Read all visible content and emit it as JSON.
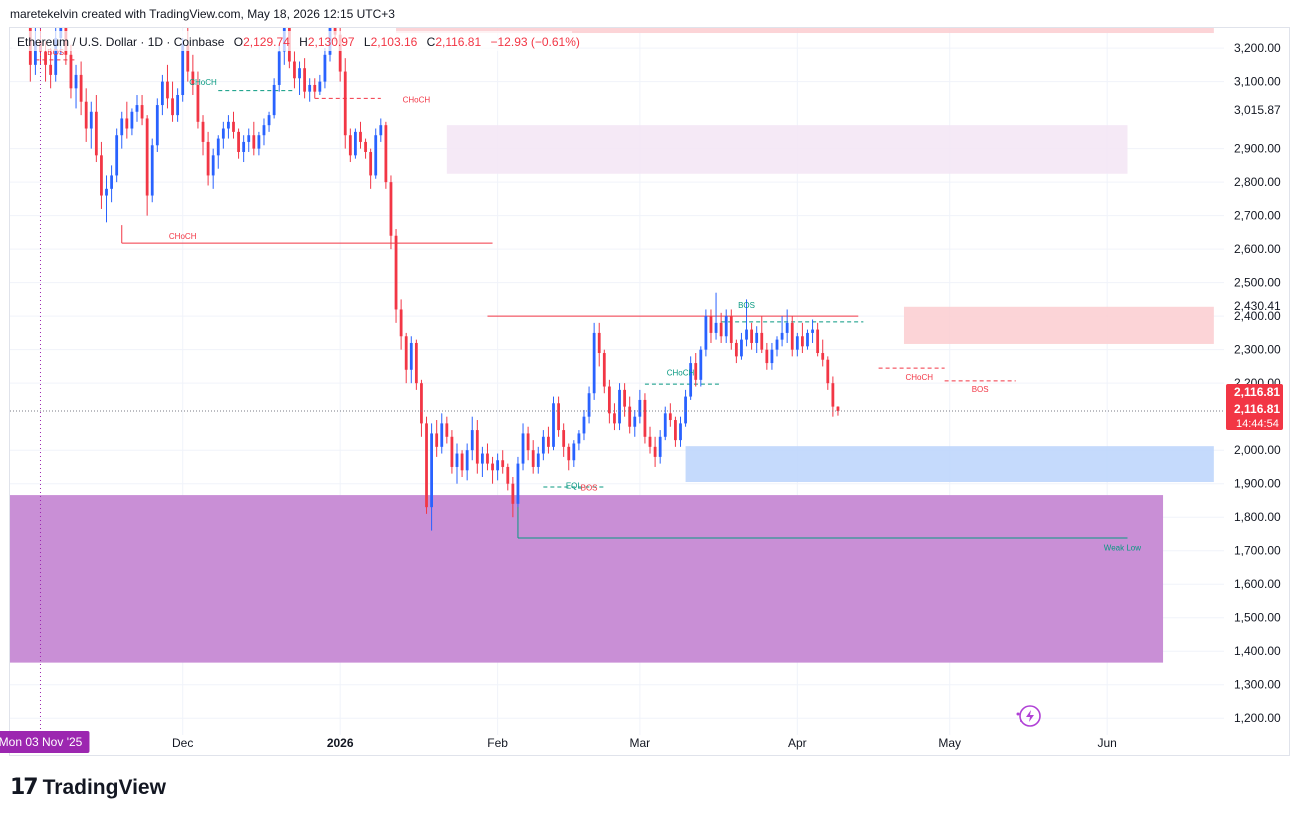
{
  "header": {
    "author_line": "maretekelvin created with TradingView.com, May 18, 2026 12:15 UTC+3"
  },
  "legend": {
    "symbol": "Ethereum / U.S. Dollar · 1D · Coinbase",
    "o_label": "O",
    "o_value": "2,129.74",
    "h_label": "H",
    "h_value": "2,130.97",
    "l_label": "L",
    "l_value": "2,103.16",
    "c_label": "C",
    "c_value": "2,116.81",
    "change": "−12.93 (−0.61%)"
  },
  "footer": {
    "brand": "TradingView",
    "logo_glyph": "17"
  },
  "colors": {
    "up": "#2962ff",
    "down": "#f23645",
    "green_line": "#089981",
    "purple_zone": "#c98fd6",
    "lavender_zone": "#f3e5f5",
    "pink_zone": "#fccdd0",
    "blue_zone": "#bbd3fb",
    "badge_bg": "#f23645",
    "crosshair_badge_bg": "#9c27b0"
  },
  "chart_data": {
    "type": "candlestick",
    "symbol": "Ethereum / U.S. Dollar",
    "interval": "1D",
    "exchange": "Coinbase",
    "y_axis": {
      "ticks": [
        "3,200.00",
        "3,100.00",
        "3,015.87",
        "2,900.00",
        "2,800.00",
        "2,700.00",
        "2,600.00",
        "2,500.00",
        "2,430.41",
        "2,400.00",
        "2,300.00",
        "2,200.00",
        "2,000.00",
        "1,900.00",
        "1,800.00",
        "1,700.00",
        "1,600.00",
        "1,500.00",
        "1,400.00",
        "1,300.00",
        "1,200.00"
      ],
      "tick_values": [
        3200,
        3100,
        3015.87,
        2900,
        2800,
        2700,
        2600,
        2500,
        2430.41,
        2400,
        2300,
        2200,
        2000,
        1900,
        1800,
        1700,
        1600,
        1500,
        1400,
        1300,
        1200
      ],
      "range": [
        1150,
        3260
      ]
    },
    "x_axis": {
      "labels": [
        "Dec",
        "2026",
        "Feb",
        "Mar",
        "Apr",
        "May",
        "Jun"
      ],
      "label_dates": [
        "2025-12-01",
        "2026-01-01",
        "2026-02-01",
        "2026-03-01",
        "2026-04-01",
        "2026-05-01",
        "2026-06-01"
      ],
      "range": [
        "2025-10-28",
        "2026-06-24"
      ]
    },
    "crosshair_date_label": "Mon 03 Nov '25",
    "last_price": {
      "price": "2,116.81",
      "price_label_2": "2,116.81",
      "countdown": "14:44:54",
      "value": 2116.81
    },
    "annotations": [
      {
        "text": "BOS",
        "date": "2025-11-06",
        "price": 3180
      },
      {
        "text": "CHoCH",
        "date": "2025-12-05",
        "price": 3090
      },
      {
        "text": "CHoCH",
        "date": "2026-01-16",
        "price": 3038
      },
      {
        "text": "CHoCH",
        "date": "2025-12-01",
        "price": 2630
      },
      {
        "text": "BOS",
        "date": "2026-03-22",
        "price": 2425
      },
      {
        "text": "CHoCH",
        "date": "2026-03-09",
        "price": 2223
      },
      {
        "text": "CHoCH",
        "date": "2026-04-25",
        "price": 2210
      },
      {
        "text": "BOS",
        "date": "2026-05-07",
        "price": 2173
      },
      {
        "text": "BOS",
        "date": "2026-02-19",
        "price": 1880
      },
      {
        "text": "EQL",
        "date": "2026-02-16",
        "price": 1886
      },
      {
        "text": "Weak Low",
        "date": "2026-06-04",
        "price": 1700
      }
    ],
    "zones": [
      {
        "name": "lavender-zone",
        "from": "2026-01-22",
        "to": "2026-06-05",
        "top": 2970,
        "bottom": 2825
      },
      {
        "name": "pink-zone",
        "from": "2026-04-22",
        "to": "2026-06-22",
        "top": 2428,
        "bottom": 2317
      },
      {
        "name": "pink-zone-top",
        "from": "2026-01-12",
        "to": "2026-06-22",
        "top": 3265,
        "bottom": 3245
      },
      {
        "name": "blue-zone",
        "from": "2026-03-10",
        "to": "2026-06-22",
        "top": 2012,
        "bottom": 1905
      },
      {
        "name": "purple-zone",
        "from": "2025-10-28",
        "to": "2026-06-12",
        "top": 1866,
        "bottom": 1366
      }
    ],
    "lines": [
      {
        "name": "choch-line-red",
        "from": "2025-11-19",
        "to": "2026-01-31",
        "price": 2618,
        "style": "solid",
        "color": "down"
      },
      {
        "name": "bos-line-red",
        "from": "2026-01-30",
        "to": "2026-04-13",
        "price": 2400,
        "style": "solid",
        "color": "down"
      },
      {
        "name": "weak-low-line",
        "from": "2026-02-05",
        "to": "2026-06-05",
        "price": 1738,
        "style": "solid",
        "color": "green"
      },
      {
        "name": "bos-dash-green",
        "from": "2026-03-17",
        "to": "2026-04-14",
        "price": 2383,
        "style": "dashed",
        "color": "green"
      },
      {
        "name": "choch-dash-green",
        "from": "2026-03-02",
        "to": "2026-03-17",
        "price": 2197,
        "style": "dashed",
        "color": "green"
      },
      {
        "name": "choch-dash-green-2",
        "from": "2025-12-08",
        "to": "2025-12-23",
        "price": 3073,
        "style": "dashed",
        "color": "green"
      },
      {
        "name": "choch-dash-red",
        "from": "2026-04-17",
        "to": "2026-04-30",
        "price": 2245,
        "style": "dashed",
        "color": "down"
      },
      {
        "name": "bos-dash-red",
        "from": "2026-04-30",
        "to": "2026-05-14",
        "price": 2207,
        "style": "dashed",
        "color": "down"
      },
      {
        "name": "bos-dash-red-2",
        "from": "2025-11-02",
        "to": "2025-11-10",
        "price": 3165,
        "style": "dashed",
        "color": "down"
      },
      {
        "name": "choch-dash-red-2",
        "from": "2025-12-27",
        "to": "2026-01-09",
        "price": 3050,
        "style": "dashed",
        "color": "down"
      },
      {
        "name": "eql-dash",
        "from": "2026-02-10",
        "to": "2026-02-22",
        "price": 1890,
        "style": "dashed",
        "color": "green"
      }
    ],
    "candles_start_date": "2025-11-01",
    "candles": [
      [
        3560,
        3600,
        3100,
        3150
      ],
      [
        3150,
        3260,
        3120,
        3220
      ],
      [
        3220,
        3280,
        3150,
        3190
      ],
      [
        3190,
        3220,
        3100,
        3150
      ],
      [
        3150,
        3200,
        3080,
        3120
      ],
      [
        3120,
        3260,
        3100,
        3230
      ],
      [
        3230,
        3320,
        3180,
        3260
      ],
      [
        3260,
        3300,
        3150,
        3180
      ],
      [
        3180,
        3210,
        3050,
        3080
      ],
      [
        3080,
        3150,
        3020,
        3120
      ],
      [
        3120,
        3160,
        3000,
        3040
      ],
      [
        3040,
        3080,
        2920,
        2960
      ],
      [
        2960,
        3040,
        2900,
        3010
      ],
      [
        3010,
        3060,
        2860,
        2880
      ],
      [
        2880,
        2920,
        2720,
        2760
      ],
      [
        2760,
        2820,
        2680,
        2780
      ],
      [
        2780,
        2850,
        2740,
        2820
      ],
      [
        2820,
        2960,
        2800,
        2940
      ],
      [
        2940,
        3010,
        2900,
        2990
      ],
      [
        2990,
        3040,
        2930,
        2960
      ],
      [
        2960,
        3020,
        2940,
        3010
      ],
      [
        3010,
        3060,
        2980,
        3030
      ],
      [
        3030,
        3060,
        2970,
        2990
      ],
      [
        2990,
        3000,
        2700,
        2760
      ],
      [
        2760,
        2930,
        2740,
        2910
      ],
      [
        2910,
        3050,
        2890,
        3030
      ],
      [
        3030,
        3120,
        3000,
        3100
      ],
      [
        3100,
        3150,
        3020,
        3050
      ],
      [
        3050,
        3100,
        2980,
        3000
      ],
      [
        3000,
        3080,
        2980,
        3060
      ],
      [
        3060,
        3230,
        3040,
        3210
      ],
      [
        3210,
        3260,
        3100,
        3130
      ],
      [
        3130,
        3180,
        3060,
        3090
      ],
      [
        3090,
        3130,
        2960,
        2980
      ],
      [
        2980,
        3000,
        2880,
        2920
      ],
      [
        2920,
        2950,
        2790,
        2820
      ],
      [
        2820,
        2900,
        2780,
        2880
      ],
      [
        2880,
        2940,
        2840,
        2930
      ],
      [
        2930,
        2980,
        2900,
        2960
      ],
      [
        2960,
        3000,
        2930,
        2980
      ],
      [
        2980,
        3010,
        2930,
        2950
      ],
      [
        2950,
        2960,
        2870,
        2890
      ],
      [
        2890,
        2940,
        2860,
        2920
      ],
      [
        2920,
        2960,
        2890,
        2940
      ],
      [
        2940,
        2980,
        2880,
        2900
      ],
      [
        2900,
        2950,
        2880,
        2940
      ],
      [
        2940,
        2990,
        2910,
        2970
      ],
      [
        2970,
        3010,
        2950,
        3000
      ],
      [
        3000,
        3110,
        2990,
        3090
      ],
      [
        3090,
        3210,
        3070,
        3190
      ],
      [
        3190,
        3300,
        3150,
        3280
      ],
      [
        3280,
        3320,
        3140,
        3160
      ],
      [
        3160,
        3190,
        3080,
        3110
      ],
      [
        3110,
        3160,
        3060,
        3140
      ],
      [
        3140,
        3170,
        3050,
        3070
      ],
      [
        3070,
        3110,
        3040,
        3090
      ],
      [
        3090,
        3110,
        3050,
        3070
      ],
      [
        3070,
        3120,
        3060,
        3100
      ],
      [
        3100,
        3200,
        3080,
        3180
      ],
      [
        3180,
        3330,
        3160,
        3310
      ],
      [
        3310,
        3340,
        3220,
        3240
      ],
      [
        3240,
        3260,
        3100,
        3130
      ],
      [
        3130,
        3170,
        2900,
        2940
      ],
      [
        2940,
        2960,
        2860,
        2880
      ],
      [
        2880,
        2960,
        2870,
        2950
      ],
      [
        2950,
        2980,
        2900,
        2920
      ],
      [
        2920,
        2930,
        2870,
        2890
      ],
      [
        2890,
        2900,
        2780,
        2820
      ],
      [
        2820,
        2960,
        2810,
        2940
      ],
      [
        2940,
        2990,
        2920,
        2970
      ],
      [
        2970,
        2980,
        2780,
        2800
      ],
      [
        2800,
        2820,
        2600,
        2640
      ],
      [
        2640,
        2660,
        2380,
        2420
      ],
      [
        2420,
        2450,
        2300,
        2340
      ],
      [
        2340,
        2350,
        2200,
        2240
      ],
      [
        2240,
        2340,
        2200,
        2320
      ],
      [
        2320,
        2330,
        2180,
        2200
      ],
      [
        2200,
        2210,
        2040,
        2080
      ],
      [
        2080,
        2100,
        1810,
        1830
      ],
      [
        1830,
        2080,
        1760,
        2050
      ],
      [
        2050,
        2090,
        1980,
        2010
      ],
      [
        2010,
        2110,
        1990,
        2080
      ],
      [
        2080,
        2100,
        2020,
        2040
      ],
      [
        2040,
        2060,
        1930,
        1950
      ],
      [
        1950,
        2020,
        1900,
        1990
      ],
      [
        1990,
        2000,
        1920,
        1940
      ],
      [
        1940,
        2020,
        1910,
        2000
      ],
      [
        2000,
        2100,
        1970,
        2060
      ],
      [
        2060,
        2090,
        1930,
        1960
      ],
      [
        1960,
        2010,
        1920,
        1990
      ],
      [
        1990,
        2020,
        1940,
        1960
      ],
      [
        1960,
        1980,
        1900,
        1940
      ],
      [
        1940,
        1990,
        1910,
        1970
      ],
      [
        1970,
        2000,
        1930,
        1950
      ],
      [
        1950,
        1960,
        1880,
        1900
      ],
      [
        1900,
        1920,
        1800,
        1840
      ],
      [
        1840,
        1980,
        1830,
        1960
      ],
      [
        1960,
        2080,
        1940,
        2050
      ],
      [
        2050,
        2070,
        1970,
        2000
      ],
      [
        2000,
        2030,
        1930,
        1950
      ],
      [
        1950,
        2010,
        1930,
        1990
      ],
      [
        1990,
        2060,
        1970,
        2040
      ],
      [
        2040,
        2070,
        1990,
        2010
      ],
      [
        2010,
        2160,
        2000,
        2140
      ],
      [
        2140,
        2160,
        2040,
        2060
      ],
      [
        2060,
        2080,
        1980,
        2010
      ],
      [
        2010,
        2020,
        1940,
        1970
      ],
      [
        1970,
        2030,
        1950,
        2020
      ],
      [
        2020,
        2060,
        2000,
        2050
      ],
      [
        2050,
        2120,
        2030,
        2100
      ],
      [
        2100,
        2190,
        2080,
        2170
      ],
      [
        2170,
        2380,
        2150,
        2350
      ],
      [
        2350,
        2380,
        2250,
        2290
      ],
      [
        2290,
        2300,
        2170,
        2190
      ],
      [
        2190,
        2210,
        2080,
        2110
      ],
      [
        2110,
        2140,
        2060,
        2080
      ],
      [
        2080,
        2200,
        2060,
        2180
      ],
      [
        2180,
        2200,
        2100,
        2130
      ],
      [
        2130,
        2160,
        2050,
        2070
      ],
      [
        2070,
        2120,
        2040,
        2100
      ],
      [
        2100,
        2180,
        2080,
        2150
      ],
      [
        2150,
        2170,
        2020,
        2040
      ],
      [
        2040,
        2070,
        1990,
        2010
      ],
      [
        2010,
        2040,
        1950,
        1980
      ],
      [
        1980,
        2060,
        1960,
        2040
      ],
      [
        2040,
        2130,
        2030,
        2110
      ],
      [
        2110,
        2140,
        2070,
        2090
      ],
      [
        2090,
        2100,
        2010,
        2030
      ],
      [
        2030,
        2100,
        2010,
        2080
      ],
      [
        2080,
        2180,
        2070,
        2160
      ],
      [
        2160,
        2280,
        2150,
        2260
      ],
      [
        2260,
        2290,
        2190,
        2210
      ],
      [
        2210,
        2310,
        2190,
        2300
      ],
      [
        2300,
        2420,
        2280,
        2400
      ],
      [
        2400,
        2420,
        2320,
        2350
      ],
      [
        2350,
        2470,
        2330,
        2380
      ],
      [
        2380,
        2410,
        2320,
        2340
      ],
      [
        2340,
        2420,
        2320,
        2400
      ],
      [
        2400,
        2420,
        2300,
        2320
      ],
      [
        2320,
        2330,
        2260,
        2280
      ],
      [
        2280,
        2350,
        2270,
        2330
      ],
      [
        2330,
        2450,
        2310,
        2360
      ],
      [
        2360,
        2380,
        2300,
        2320
      ],
      [
        2320,
        2370,
        2290,
        2350
      ],
      [
        2350,
        2400,
        2290,
        2300
      ],
      [
        2300,
        2320,
        2240,
        2260
      ],
      [
        2260,
        2320,
        2240,
        2300
      ],
      [
        2300,
        2340,
        2280,
        2330
      ],
      [
        2330,
        2400,
        2310,
        2350
      ],
      [
        2350,
        2420,
        2320,
        2380
      ],
      [
        2380,
        2400,
        2280,
        2300
      ],
      [
        2300,
        2350,
        2280,
        2340
      ],
      [
        2340,
        2380,
        2290,
        2310
      ],
      [
        2310,
        2360,
        2300,
        2350
      ],
      [
        2350,
        2390,
        2320,
        2360
      ],
      [
        2360,
        2380,
        2280,
        2290
      ],
      [
        2290,
        2330,
        2250,
        2270
      ],
      [
        2270,
        2280,
        2180,
        2200
      ],
      [
        2200,
        2220,
        2100,
        2130
      ],
      [
        2130,
        2131,
        2103,
        2117
      ]
    ]
  }
}
